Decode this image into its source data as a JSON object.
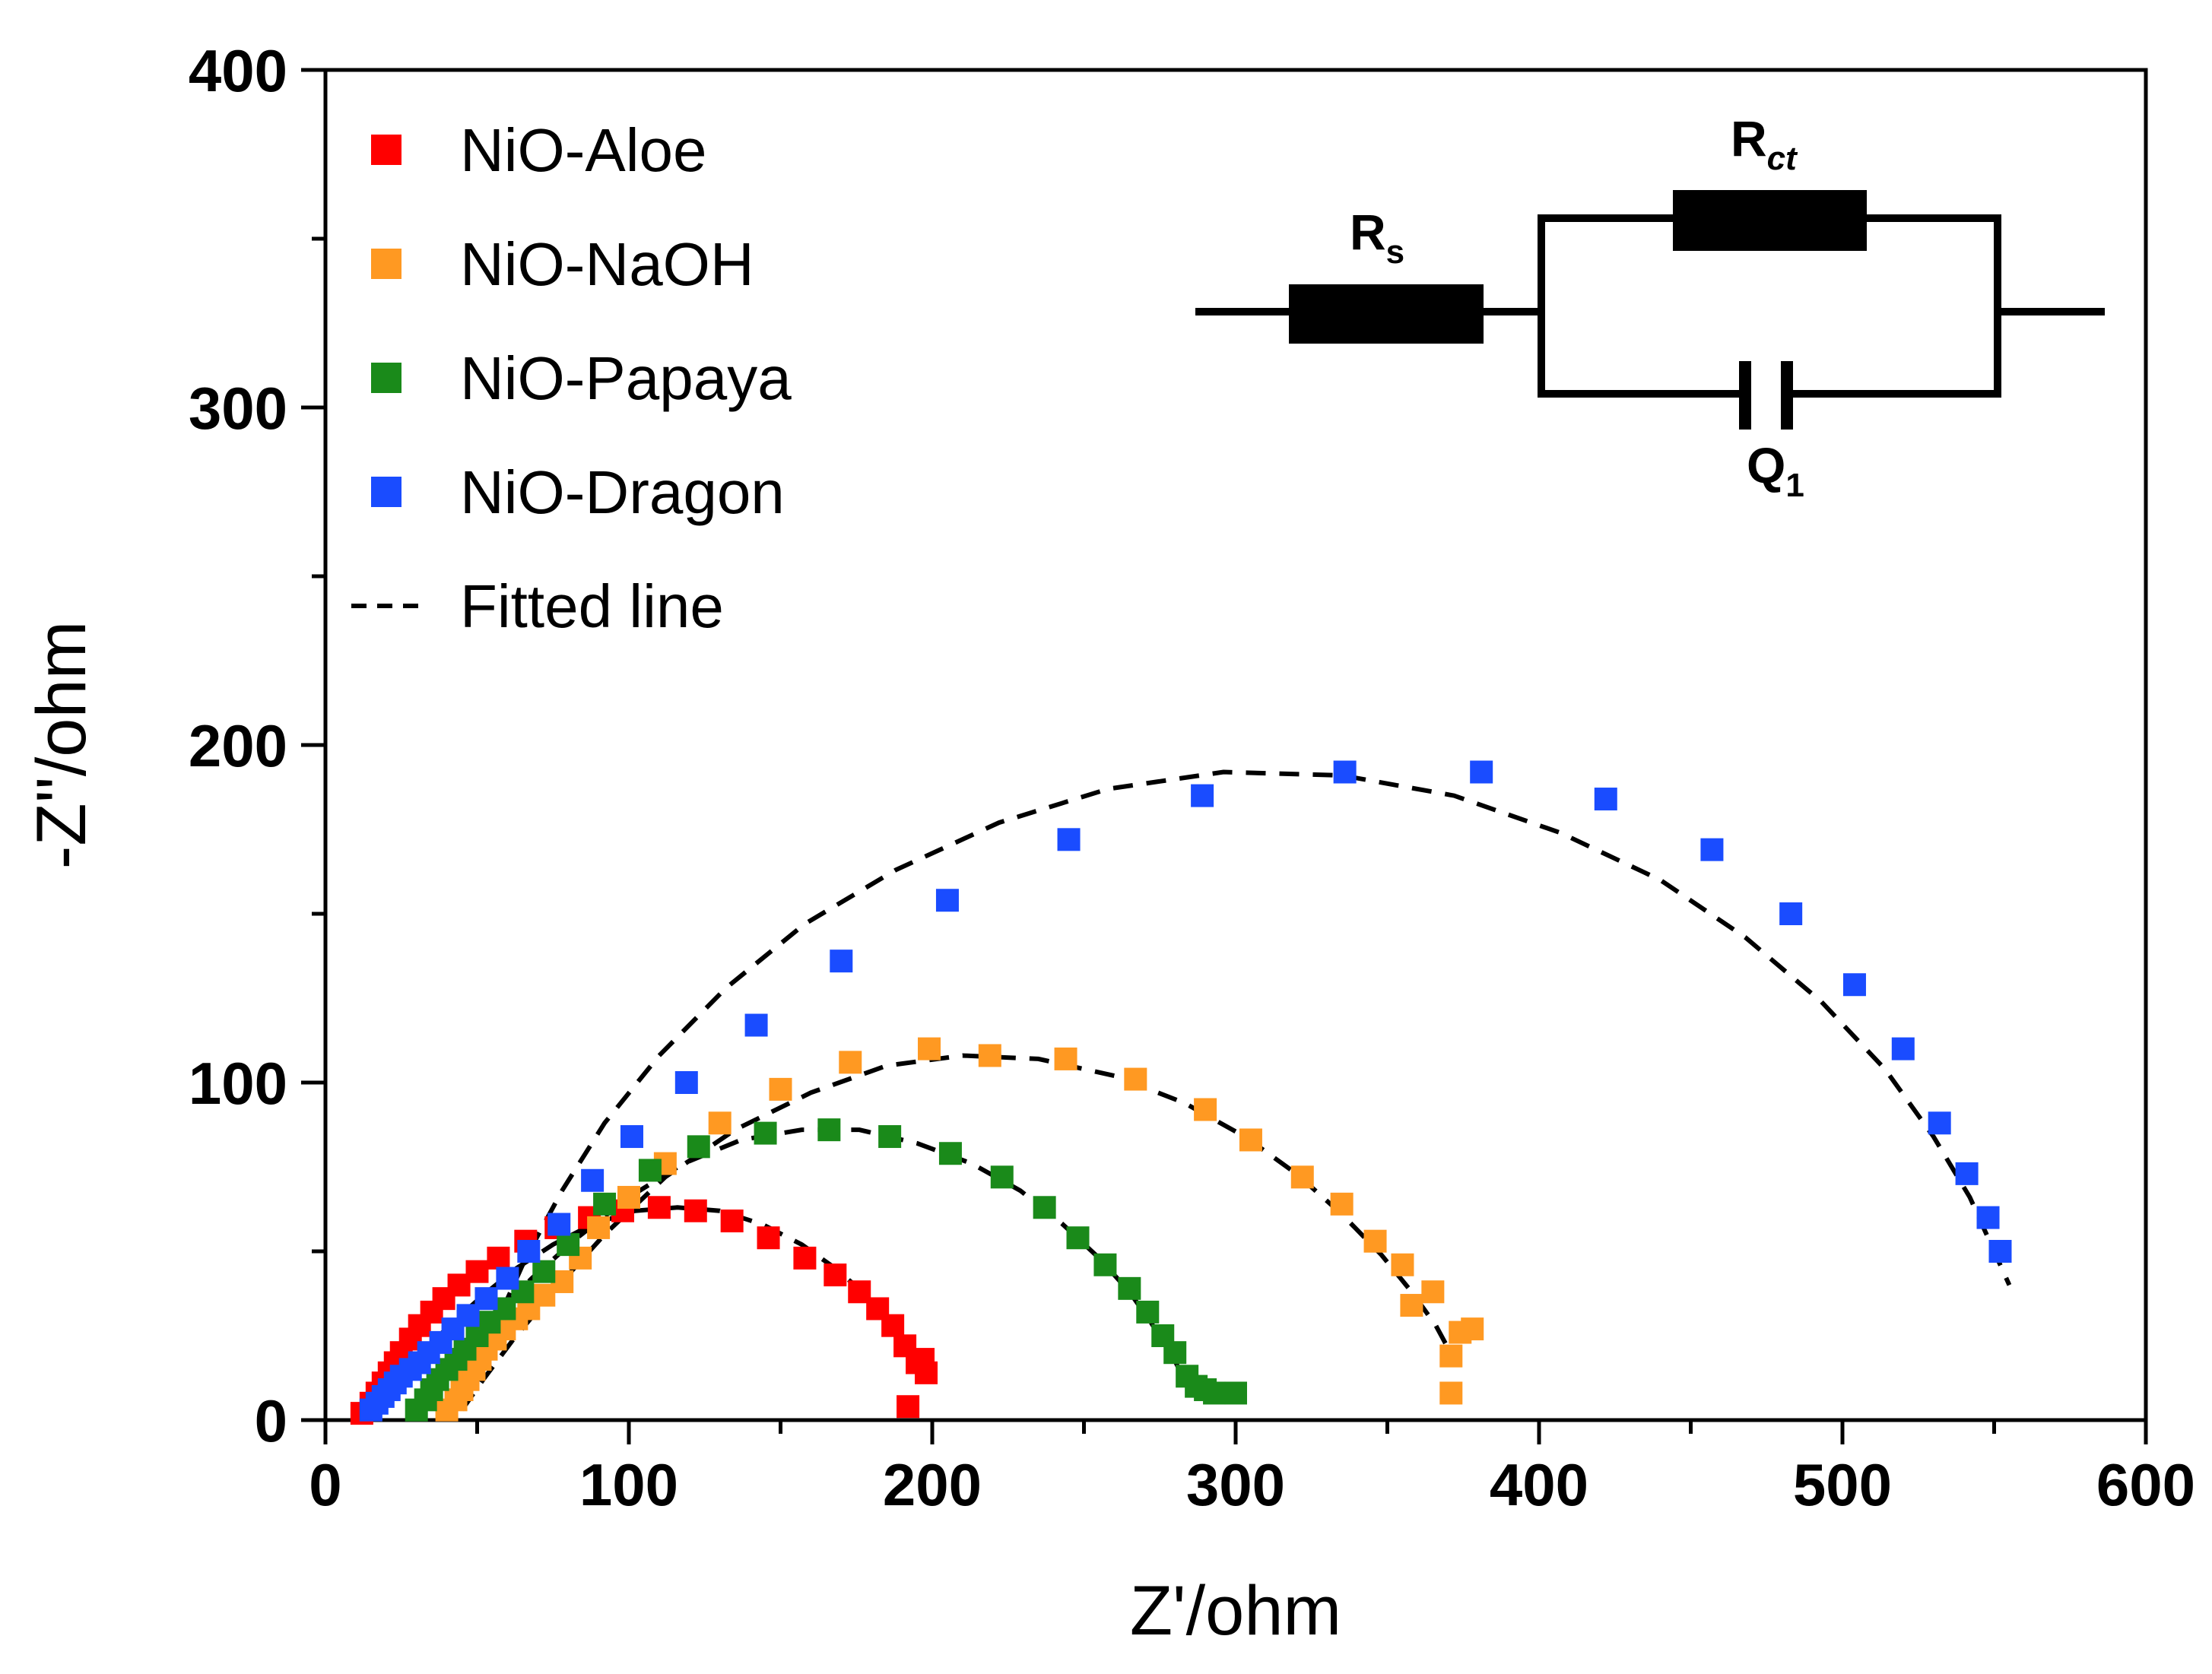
{
  "chart_data": {
    "type": "scatter",
    "title": "",
    "xlabel": "Z'/ohm",
    "ylabel": "-Z''/ohm",
    "xlim": [
      0,
      600
    ],
    "ylim": [
      0,
      400
    ],
    "xticks": [
      0,
      100,
      200,
      300,
      400,
      500,
      600
    ],
    "yticks": [
      0,
      100,
      200,
      300,
      400
    ],
    "xtick_labels": [
      "0",
      "100",
      "200",
      "300",
      "400",
      "500",
      "600"
    ],
    "ytick_labels": [
      "0",
      "100",
      "200",
      "300",
      "400"
    ],
    "legend_position": "top-left",
    "legend": [
      "NiO-Aloe",
      "NiO-NaOH",
      "NiO-Papaya",
      "NiO-Dragon",
      "Fitted line"
    ],
    "series": [
      {
        "name": "NiO-Aloe",
        "color": "#ff0000",
        "x": [
          12,
          15,
          17,
          19,
          21,
          23,
          25,
          28,
          31,
          35,
          39,
          44,
          50,
          57,
          66,
          76,
          87,
          98,
          110,
          122,
          134,
          146,
          158,
          168,
          176,
          182,
          187,
          191,
          195,
          198,
          197,
          192
        ],
        "y": [
          2,
          5,
          8,
          11,
          14,
          17,
          20,
          24,
          28,
          32,
          36,
          40,
          44,
          48,
          53,
          57,
          60,
          62,
          63,
          62,
          59,
          54,
          48,
          43,
          38,
          33,
          28,
          22,
          17,
          14,
          18,
          4
        ],
        "fit_x": [
          15,
          20,
          26,
          33,
          42,
          52,
          63,
          75,
          88,
          102,
          116,
          130,
          144,
          157,
          168,
          177,
          184,
          190,
          194,
          197
        ],
        "fit_y": [
          3,
          8,
          14,
          21,
          29,
          37,
          45,
          52,
          58,
          62,
          63,
          62,
          58,
          52,
          45,
          38,
          31,
          24,
          17,
          11
        ]
      },
      {
        "name": "NiO-NaOH",
        "color": "#ff9922",
        "x": [
          40,
          43,
          45,
          47,
          49,
          51,
          53,
          56,
          59,
          63,
          67,
          72,
          78,
          84,
          90,
          100,
          112,
          130,
          150,
          173,
          199,
          219,
          244,
          267,
          290,
          305,
          322,
          335,
          346,
          355,
          358,
          365,
          371,
          371,
          374,
          378
        ],
        "y": [
          3,
          6,
          9,
          12,
          15,
          18,
          21,
          24,
          27,
          30,
          33,
          37,
          41,
          48,
          57,
          66,
          76,
          88,
          98,
          106,
          110,
          108,
          107,
          101,
          92,
          83,
          72,
          64,
          53,
          46,
          34,
          38,
          19,
          8,
          26,
          27
        ],
        "fit_x": [
          45,
          52,
          62,
          75,
          92,
          112,
          135,
          160,
          185,
          210,
          235,
          260,
          283,
          303,
          320,
          335,
          348,
          358,
          366,
          372
        ],
        "fit_y": [
          3,
          12,
          24,
          38,
          55,
          72,
          86,
          97,
          105,
          108,
          107,
          102,
          94,
          84,
          73,
          61,
          49,
          38,
          28,
          18
        ]
      },
      {
        "name": "NiO-Papaya",
        "color": "#1a8a1a",
        "x": [
          30,
          33,
          35,
          37,
          40,
          43,
          46,
          50,
          54,
          59,
          65,
          72,
          80,
          92,
          107,
          123,
          145,
          166,
          186,
          206,
          223,
          237,
          248,
          257,
          265,
          271,
          276,
          280,
          284,
          287,
          290,
          293,
          300
        ],
        "y": [
          3,
          6,
          9,
          12,
          15,
          18,
          21,
          25,
          29,
          33,
          38,
          44,
          52,
          64,
          74,
          81,
          85,
          86,
          84,
          79,
          72,
          63,
          54,
          46,
          39,
          32,
          25,
          20,
          13,
          10,
          9,
          8,
          8
        ],
        "fit_x": [
          32,
          38,
          46,
          56,
          68,
          83,
          100,
          118,
          137,
          157,
          176,
          195,
          213,
          229,
          243,
          255,
          265,
          272,
          278,
          282
        ],
        "fit_y": [
          3,
          10,
          20,
          31,
          42,
          54,
          66,
          76,
          83,
          86,
          86,
          82,
          76,
          68,
          58,
          48,
          38,
          29,
          21,
          14
        ]
      },
      {
        "name": "NiO-Dragon",
        "color": "#1a4cff",
        "x": [
          15,
          17,
          19,
          21,
          23,
          25,
          28,
          31,
          34,
          38,
          42,
          47,
          53,
          60,
          67,
          77,
          88,
          101,
          119,
          142,
          170,
          205,
          245,
          289,
          336,
          381,
          422,
          457,
          483,
          504,
          520,
          532,
          541,
          548,
          552
        ],
        "y": [
          3,
          5,
          7,
          9,
          11,
          13,
          15,
          17,
          20,
          23,
          27,
          31,
          36,
          42,
          50,
          58,
          71,
          84,
          100,
          117,
          136,
          154,
          172,
          185,
          192,
          192,
          184,
          169,
          150,
          129,
          110,
          88,
          73,
          60,
          50
        ],
        "fit_x": [
          50,
          57,
          66,
          78,
          92,
          110,
          132,
          158,
          188,
          222,
          258,
          296,
          335,
          372,
          407,
          440,
          468,
          493,
          514,
          530,
          542,
          550,
          555
        ],
        "fit_y": [
          14,
          30,
          48,
          68,
          88,
          108,
          128,
          147,
          163,
          177,
          187,
          192,
          191,
          185,
          174,
          160,
          143,
          124,
          104,
          84,
          66,
          50,
          40
        ]
      }
    ],
    "inset": {
      "type": "equivalent-circuit",
      "rs_label": "R",
      "rs_sub": "s",
      "rct_label": "R",
      "rct_sub": "ct",
      "q_label": "Q",
      "q_sub": "1"
    }
  }
}
